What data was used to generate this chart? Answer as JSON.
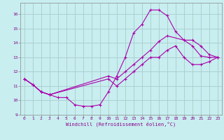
{
  "xlabel": "Windchill (Refroidissement éolien,°C)",
  "bg_color": "#c8eef0",
  "grid_color": "#aadddd",
  "line_color": "#aa00aa",
  "xlim": [
    -0.5,
    23.5
  ],
  "ylim": [
    9,
    16.8
  ],
  "xticks": [
    0,
    1,
    2,
    3,
    4,
    5,
    6,
    7,
    8,
    9,
    10,
    11,
    12,
    13,
    14,
    15,
    16,
    17,
    18,
    19,
    20,
    21,
    22,
    23
  ],
  "yticks": [
    9,
    10,
    11,
    12,
    13,
    14,
    15,
    16
  ],
  "line1_x": [
    0,
    1,
    2,
    3,
    4,
    5,
    6,
    7,
    8,
    9,
    10,
    11,
    12,
    13,
    14,
    15,
    16,
    17,
    18,
    19,
    20,
    21,
    22,
    23
  ],
  "line1_y": [
    11.5,
    11.1,
    10.6,
    10.4,
    10.2,
    10.2,
    9.7,
    9.6,
    9.6,
    9.7,
    10.6,
    11.7,
    13.0,
    14.7,
    15.3,
    16.3,
    16.3,
    15.9,
    14.8,
    14.2,
    13.8,
    13.1,
    13.0,
    13.0
  ],
  "line2_x": [
    0,
    1,
    2,
    3,
    10,
    11,
    12,
    13,
    14,
    15,
    16,
    17,
    19,
    20,
    21,
    22,
    23
  ],
  "line2_y": [
    11.5,
    11.1,
    10.6,
    10.4,
    11.7,
    11.5,
    12.0,
    12.5,
    13.0,
    13.5,
    14.1,
    14.5,
    14.2,
    14.2,
    13.8,
    13.2,
    13.0
  ],
  "line3_x": [
    0,
    1,
    2,
    3,
    10,
    11,
    12,
    13,
    14,
    15,
    16,
    17,
    18,
    19,
    20,
    21,
    22,
    23
  ],
  "line3_y": [
    11.5,
    11.1,
    10.6,
    10.4,
    11.5,
    11.0,
    11.5,
    12.0,
    12.5,
    13.0,
    13.0,
    13.5,
    13.8,
    13.0,
    12.5,
    12.5,
    12.7,
    13.0
  ]
}
